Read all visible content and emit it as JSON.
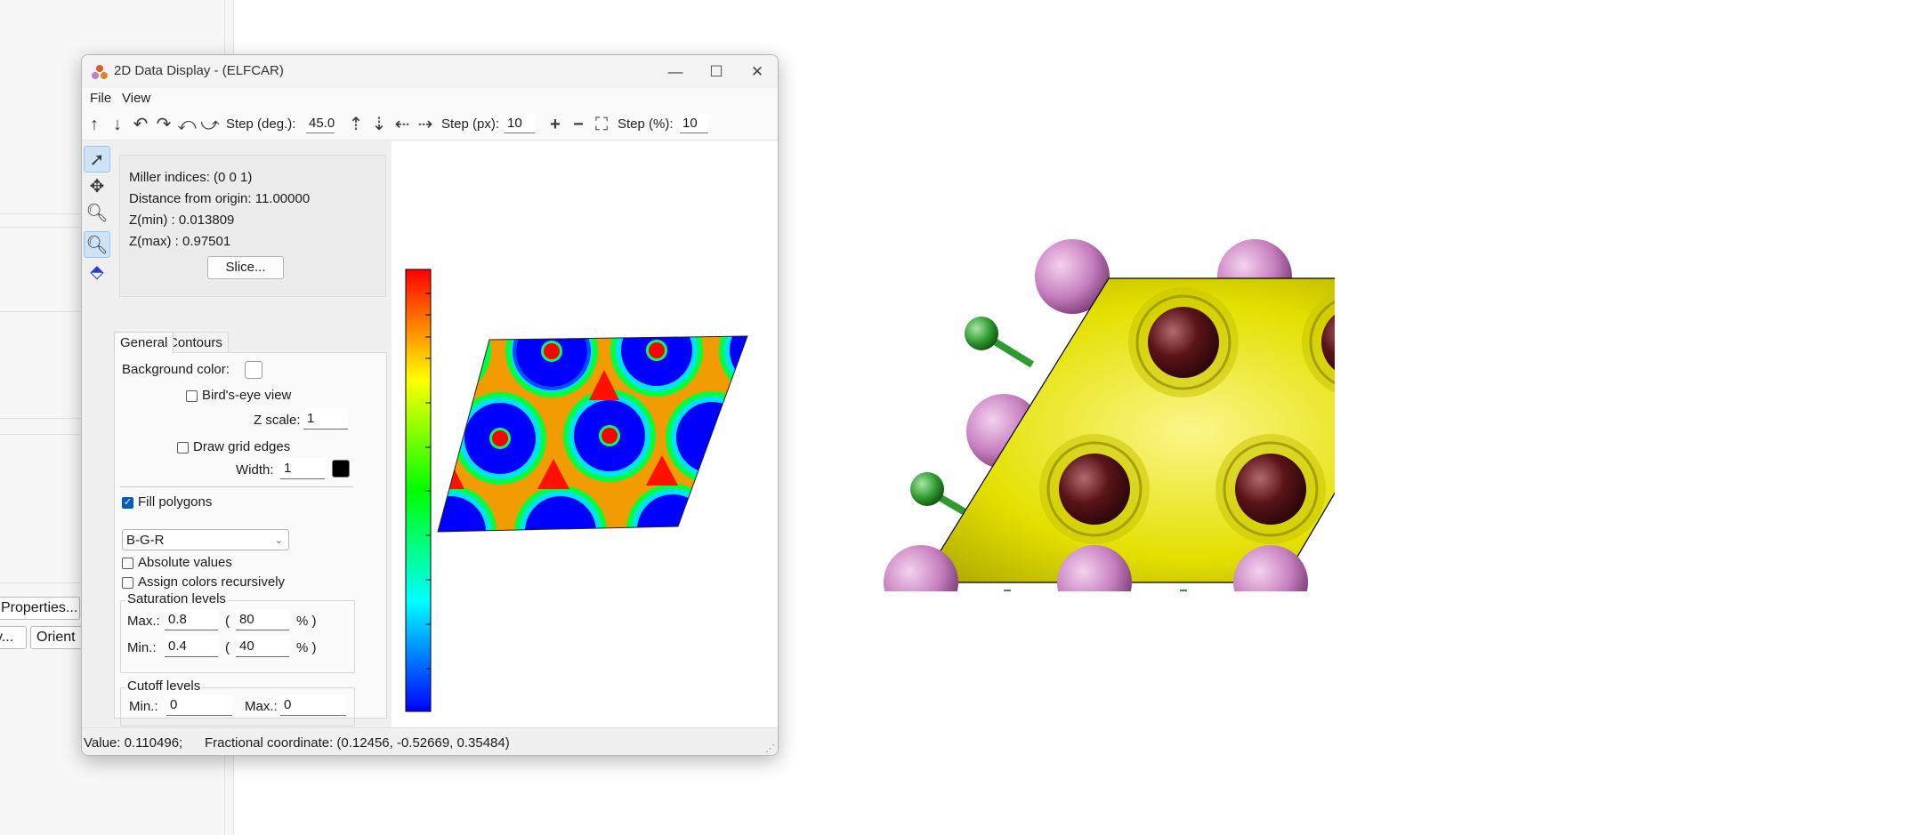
{
  "background_app": {
    "buttons": [
      "Properties...",
      "y...",
      "Orient"
    ]
  },
  "window": {
    "title": "2D Data Display - (ELFCAR)",
    "controls": {
      "minimize": "—",
      "maximize": "☐",
      "close": "✕"
    }
  },
  "menu": {
    "file": "File",
    "view": "View"
  },
  "toolbar": {
    "step_deg_label": "Step (deg.):",
    "step_deg_value": "45.0",
    "step_px_label": "Step (px):",
    "step_px_value": "10",
    "step_pct_label": "Step (%):",
    "step_pct_value": "10"
  },
  "info": {
    "miller": "Miller indices: (0 0 1)",
    "distance": "Distance from origin: 11.00000",
    "zmin": "Z(min) : 0.013809",
    "zmax": "Z(max) : 0.97501",
    "slice_button": "Slice..."
  },
  "tabs": {
    "general": "General",
    "contours": "Contours"
  },
  "general": {
    "background_color_label": "Background color:",
    "background_color": "#ffffff",
    "birds_eye_label": "Bird's-eye view",
    "birds_eye_checked": false,
    "z_scale_label": "Z scale:",
    "z_scale_value": "1",
    "draw_grid_label": "Draw grid edges",
    "draw_grid_checked": false,
    "width_label": "Width:",
    "width_value": "1",
    "grid_color": "#000000",
    "fill_polygons_label": "Fill polygons",
    "fill_polygons_checked": true,
    "color_scheme": "B-G-R",
    "absolute_values_label": "Absolute values",
    "assign_recursive_label": "Assign colors recursively",
    "saturation_title": "Saturation levels",
    "sat_max_label": "Max.:",
    "sat_max_value": "0.8",
    "sat_max_pct": "80",
    "sat_min_label": "Min.:",
    "sat_min_value": "0.4",
    "sat_min_pct": "40",
    "paren_open": "(",
    "pct_close": "% )",
    "cutoff_title": "Cutoff levels",
    "cutoff_min_label": "Min.:",
    "cutoff_min_value": "0",
    "cutoff_max_label": "Max.:",
    "cutoff_max_value": "0"
  },
  "status": {
    "value": "Value: 0.110496;",
    "coordinate": "Fractional coordinate: (0.12456, -0.52669, 0.35484)"
  },
  "colors": {
    "accent": "#005fb8",
    "colorbar": [
      "#ff0000",
      "#ffff00",
      "#00ff00",
      "#00ffff",
      "#0000ff"
    ],
    "isosurface": "#e3e000",
    "atom_pink": "#c77fc0",
    "atom_green": "#2f9a2f",
    "atom_dark": "#5a1418"
  }
}
